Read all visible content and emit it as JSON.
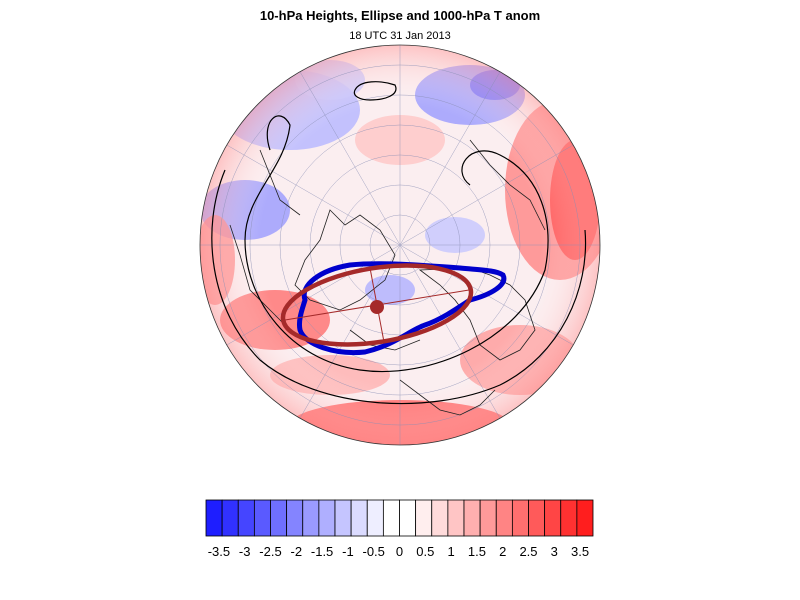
{
  "header": {
    "title": "10-hPa Heights, Ellipse and 1000-hPa T anom",
    "subtitle": "18 UTC 31 Jan 2013"
  },
  "colorbar": {
    "colors": [
      "#1e1eff",
      "#3131ff",
      "#4545ff",
      "#5a5aff",
      "#6f6fff",
      "#8484ff",
      "#9a9aff",
      "#afafff",
      "#c5c5ff",
      "#dbdbff",
      "#eeeeff",
      "#ffffff",
      "#ffffff",
      "#ffeeee",
      "#ffdbdb",
      "#ffc5c5",
      "#ffafaf",
      "#ff9a9a",
      "#ff8484",
      "#ff6f6f",
      "#ff5a5a",
      "#ff4545",
      "#ff3131",
      "#ff1e1e"
    ],
    "tick_labels": [
      "-3.5",
      "-3",
      "-2.5",
      "-2",
      "-1.5",
      "-1",
      "-0.5",
      "0",
      "0.5",
      "1",
      "1.5",
      "2",
      "2.5",
      "3",
      "3.5"
    ]
  },
  "map": {
    "projection": "north-polar orthographic",
    "ellipse_color": "#a52a2a",
    "contour_color": "#0000cc",
    "height_contour_color": "#000000"
  }
}
